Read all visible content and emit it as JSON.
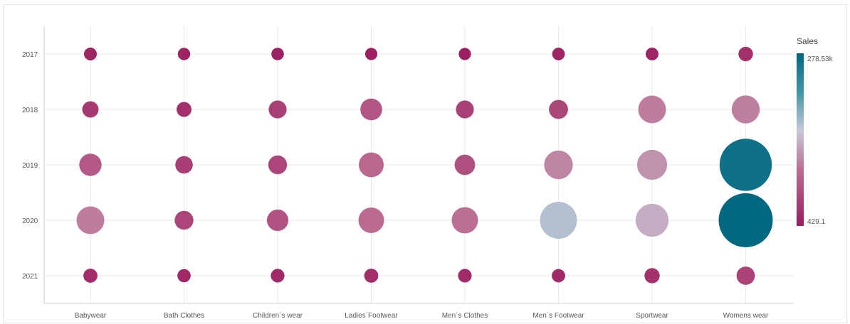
{
  "chart_data": {
    "type": "scatter",
    "title": "",
    "xlabel": "",
    "ylabel": "",
    "categories": [
      "Babywear",
      "Bath Clothes",
      "Children´s wear",
      "Ladies´Footwear",
      "Men´s Clothes",
      "Men´s Footwear",
      "Sportwear",
      "Womens wear"
    ],
    "years": [
      "2017",
      "2018",
      "2019",
      "2020",
      "2021"
    ],
    "points": [
      {
        "category": "Babywear",
        "year": "2017",
        "sales": 1200
      },
      {
        "category": "Babywear",
        "year": "2018",
        "sales": 6000
      },
      {
        "category": "Babywear",
        "year": "2019",
        "sales": 22000
      },
      {
        "category": "Babywear",
        "year": "2020",
        "sales": 45000
      },
      {
        "category": "Babywear",
        "year": "2021",
        "sales": 2500
      },
      {
        "category": "Bath Clothes",
        "year": "2017",
        "sales": 800
      },
      {
        "category": "Bath Clothes",
        "year": "2018",
        "sales": 3500
      },
      {
        "category": "Bath Clothes",
        "year": "2019",
        "sales": 8000
      },
      {
        "category": "Bath Clothes",
        "year": "2020",
        "sales": 11000
      },
      {
        "category": "Bath Clothes",
        "year": "2021",
        "sales": 1500
      },
      {
        "category": "Children´s wear",
        "year": "2017",
        "sales": 900
      },
      {
        "category": "Children´s wear",
        "year": "2018",
        "sales": 9000
      },
      {
        "category": "Children´s wear",
        "year": "2019",
        "sales": 11000
      },
      {
        "category": "Children´s wear",
        "year": "2020",
        "sales": 19000
      },
      {
        "category": "Children´s wear",
        "year": "2021",
        "sales": 2000
      },
      {
        "category": "Ladies´Footwear",
        "year": "2017",
        "sales": 700
      },
      {
        "category": "Ladies´Footwear",
        "year": "2018",
        "sales": 20000
      },
      {
        "category": "Ladies´Footwear",
        "year": "2019",
        "sales": 32000
      },
      {
        "category": "Ladies´Footwear",
        "year": "2020",
        "sales": 35000
      },
      {
        "category": "Ladies´Footwear",
        "year": "2021",
        "sales": 2500
      },
      {
        "category": "Men´s Clothes",
        "year": "2017",
        "sales": 700
      },
      {
        "category": "Men´s Clothes",
        "year": "2018",
        "sales": 9000
      },
      {
        "category": "Men´s Clothes",
        "year": "2019",
        "sales": 16000
      },
      {
        "category": "Men´s Clothes",
        "year": "2020",
        "sales": 38000
      },
      {
        "category": "Men´s Clothes",
        "year": "2021",
        "sales": 2000
      },
      {
        "category": "Men´s Footwear",
        "year": "2017",
        "sales": 1000
      },
      {
        "category": "Men´s Footwear",
        "year": "2018",
        "sales": 12000
      },
      {
        "category": "Men´s Footwear",
        "year": "2019",
        "sales": 50000
      },
      {
        "category": "Men´s Footwear",
        "year": "2020",
        "sales": 105000
      },
      {
        "category": "Men´s Footwear",
        "year": "2021",
        "sales": 1700
      },
      {
        "category": "Sportwear",
        "year": "2017",
        "sales": 1200
      },
      {
        "category": "Sportwear",
        "year": "2018",
        "sales": 45000
      },
      {
        "category": "Sportwear",
        "year": "2019",
        "sales": 58000
      },
      {
        "category": "Sportwear",
        "year": "2020",
        "sales": 75000
      },
      {
        "category": "Sportwear",
        "year": "2021",
        "sales": 4000
      },
      {
        "category": "Womens wear",
        "year": "2017",
        "sales": 3000
      },
      {
        "category": "Womens wear",
        "year": "2018",
        "sales": 47000
      },
      {
        "category": "Womens wear",
        "year": "2019",
        "sales": 255000
      },
      {
        "category": "Womens wear",
        "year": "2020",
        "sales": 278530
      },
      {
        "category": "Womens wear",
        "year": "2021",
        "sales": 10000
      }
    ],
    "legend": {
      "title": "Sales",
      "max_label": "278.53k",
      "min_label": "429.1",
      "min_value": 429.1,
      "max_value": 278530,
      "placement": "right"
    },
    "grid": true,
    "colors": {
      "low": "#9b1c5f",
      "mid": "#c8cdd6",
      "high": "#00687f"
    }
  }
}
